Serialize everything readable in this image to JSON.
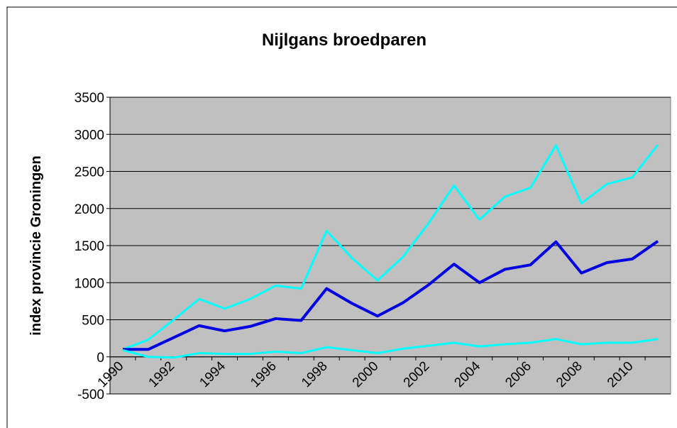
{
  "chart_data": {
    "type": "line",
    "title": "Nijlgans broedparen",
    "y_label": "index provincie Groningen",
    "categories": [
      "1990",
      null,
      "1992",
      null,
      "1994",
      null,
      "1996",
      null,
      "1998",
      null,
      "2000",
      null,
      "2002",
      null,
      "2004",
      null,
      "2006",
      null,
      "2008",
      null,
      "2010",
      null
    ],
    "series": [
      {
        "color": "#00ffff",
        "values": [
          100,
          230,
          500,
          780,
          650,
          780,
          960,
          920,
          1700,
          1330,
          1030,
          1350,
          1800,
          2310,
          1850,
          2160,
          2280,
          2850,
          2070,
          2330,
          2420,
          2860
        ]
      },
      {
        "color": "#0000e0",
        "values": [
          100,
          100,
          260,
          420,
          350,
          410,
          515,
          490,
          920,
          720,
          550,
          730,
          970,
          1250,
          1000,
          1180,
          1240,
          1550,
          1130,
          1270,
          1320,
          1560
        ]
      },
      {
        "color": "#00ffff",
        "values": [
          90,
          0,
          -10,
          50,
          40,
          40,
          70,
          50,
          130,
          90,
          50,
          110,
          150,
          190,
          140,
          170,
          190,
          240,
          170,
          190,
          190,
          240
        ]
      }
    ],
    "ylim": [
      -500,
      3500
    ],
    "yticks": [
      -500,
      0,
      500,
      1000,
      1500,
      2000,
      2500,
      3000,
      3500
    ],
    "grid": true,
    "background": "#c0c0c0"
  }
}
